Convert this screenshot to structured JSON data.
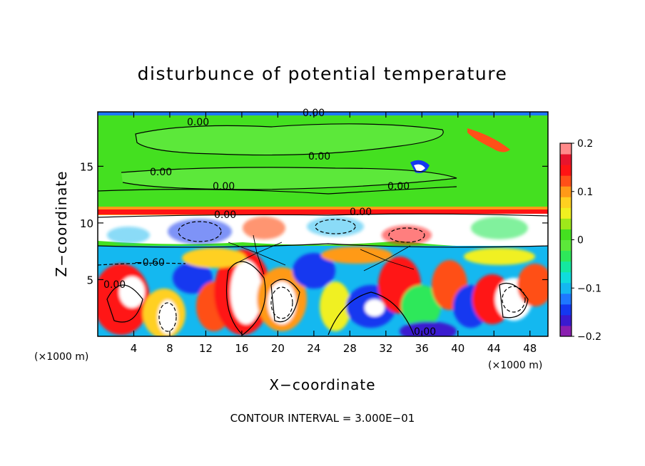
{
  "chart_data": {
    "type": "heatmap",
    "title": "disturbunce of potential temperature",
    "xlabel": "X−coordinate",
    "ylabel": "Z−coordinate",
    "x_unit_left": "(×1000 m)",
    "x_unit_right": "(×1000 m)",
    "xlim": [
      0,
      50
    ],
    "ylim": [
      0,
      19.8
    ],
    "x_ticks": [
      4,
      8,
      12,
      16,
      20,
      24,
      28,
      32,
      36,
      40,
      44,
      48
    ],
    "x_tick_labels": [
      "4",
      "8",
      "12",
      "16",
      "20",
      "24",
      "28",
      "32",
      "36",
      "40",
      "44",
      "48"
    ],
    "y_ticks": [
      5,
      10,
      15
    ],
    "y_tick_labels": [
      "5",
      "10",
      "15"
    ],
    "colorbar": {
      "ticks": [
        0.2,
        0.1,
        0,
        -0.1,
        -0.2
      ],
      "tick_labels": [
        "0.2",
        "0.1",
        "0",
        "−0.1",
        "−0.2"
      ],
      "range": [
        -0.2,
        0.2
      ],
      "colors": [
        "#8a1fb0",
        "#3a1ad0",
        "#1438f0",
        "#1e78ff",
        "#14b8f0",
        "#10dcdc",
        "#14e8a0",
        "#2ee85a",
        "#5ce83a",
        "#44e020",
        "#9ee81a",
        "#f0f020",
        "#ffd020",
        "#ff9a18",
        "#ff5018",
        "#ff1414",
        "#e8142c",
        "#ff8a8a"
      ]
    },
    "contour_labels": [
      "0.00",
      "0.00",
      "0.00",
      "0.00",
      "0.00",
      "0.00",
      "0.00",
      "0.00",
      "−0.60",
      "0.00",
      "0.00"
    ],
    "footer": "CONTOUR INTERVAL =  3.000E−01"
  }
}
